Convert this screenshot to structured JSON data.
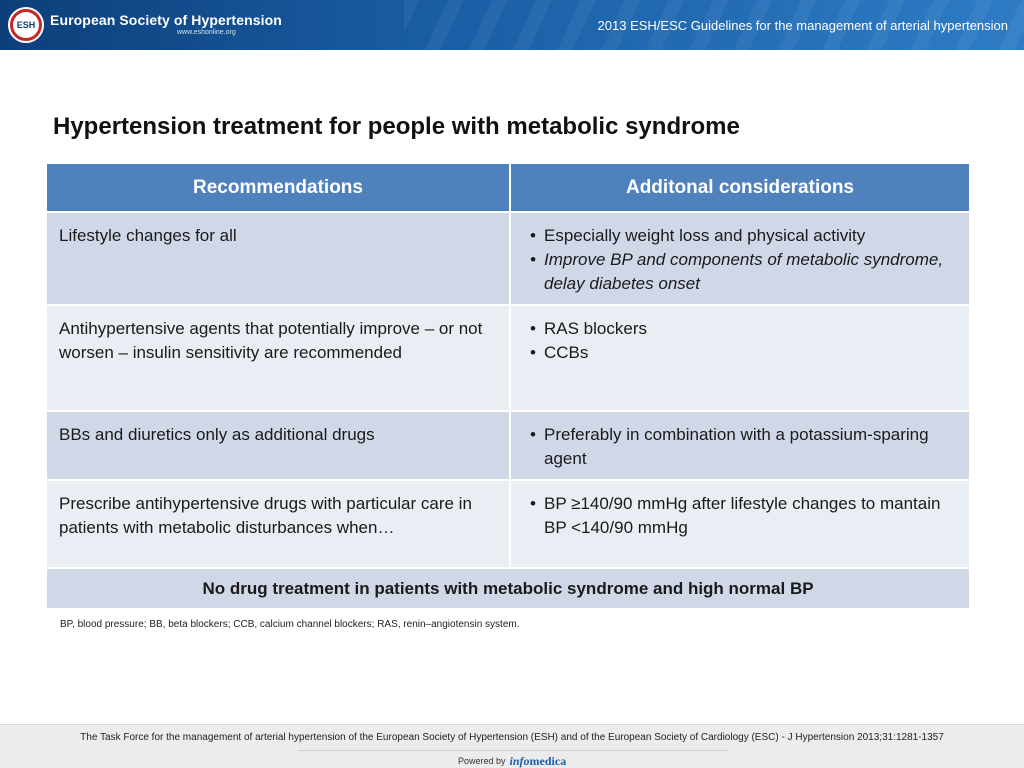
{
  "header": {
    "logo_text": "ESH",
    "org_name": "European Society of Hypertension",
    "org_url": "www.eshonline.org",
    "title": "2013 ESH/ESC Guidelines for the management of arterial hypertension"
  },
  "slide": {
    "title": "Hypertension treatment for people with metabolic syndrome"
  },
  "table": {
    "headers": [
      "Recommendations",
      "Additonal considerations"
    ],
    "rows": [
      {
        "recommendation": "Lifestyle changes for all",
        "considerations": [
          "Especially weight loss and physical activity",
          "Improve BP and components of metabolic syndrome, delay diabetes onset"
        ]
      },
      {
        "recommendation": "Antihypertensive agents that potentially improve – or not worsen – insulin sensitivity are recommended",
        "considerations": [
          "RAS blockers",
          "CCBs"
        ]
      },
      {
        "recommendation": "BBs and diuretics only as additional drugs",
        "considerations": [
          "Preferably in combination with a potassium-sparing agent"
        ]
      },
      {
        "recommendation": "Prescribe antihypertensive drugs with particular care in patients with metabolic disturbances when…",
        "considerations": [
          "BP ≥140/90 mmHg after lifestyle changes to mantain BP <140/90 mmHg"
        ]
      }
    ],
    "final_row": "No drug treatment in patients with metabolic syndrome and high normal BP"
  },
  "abbreviations": "BP, blood pressure; BB, beta blockers; CCB, calcium channel blockers; RAS, renin–angiotensin system.",
  "footer": {
    "citation": "The Task Force for the management of arterial hypertension of the European Society of Hypertension (ESH) and of the European Society of Cardiology (ESC) - J Hypertension 2013;31:1281-1357",
    "powered_by": "Powered by",
    "powered_logo_a": "info",
    "powered_logo_b": "medica"
  },
  "colors": {
    "header_blue": "#1a5fa6",
    "table_header": "#4f81bd",
    "row_dark": "#d0d8e8",
    "row_light": "#e9edf4",
    "logo_red": "#c62828"
  }
}
